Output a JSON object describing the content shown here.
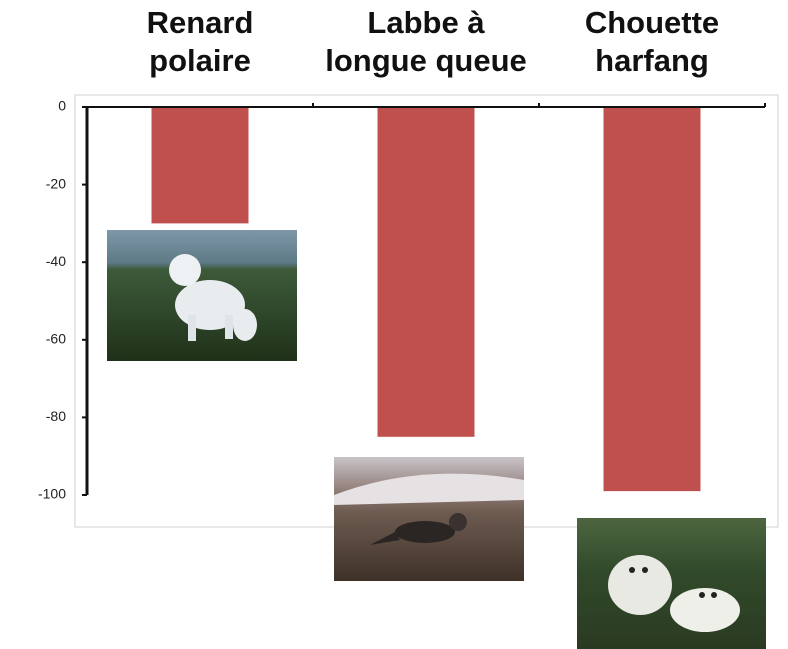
{
  "chart_data": {
    "type": "bar",
    "categories": [
      "Renard\npolaire",
      "Labbe à\nlongue queue",
      "Chouette\nharfang"
    ],
    "values": [
      -30,
      -85,
      -99
    ],
    "color": "#c0504d",
    "ylim": [
      -100,
      0
    ],
    "yticks": [
      0,
      -20,
      -40,
      -60,
      -80,
      -100
    ]
  }
}
